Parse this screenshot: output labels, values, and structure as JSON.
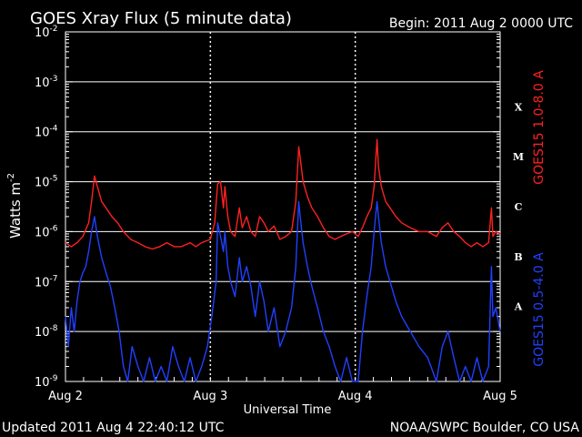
{
  "chart_data": {
    "type": "line",
    "title": "GOES Xray Flux (5 minute data)",
    "begin_label": "Begin:  2011 Aug 2 0000 UTC",
    "xlabel": "Universal Time",
    "ylabel_main": "Watts m",
    "ylabel_exp": "-2",
    "y_scale": "log",
    "ylim": [
      1e-09,
      0.01
    ],
    "xlim_days": [
      0,
      3
    ],
    "x_ticks": [
      {
        "day": 0,
        "label": "Aug 2"
      },
      {
        "day": 1,
        "label": "Aug 3"
      },
      {
        "day": 2,
        "label": "Aug 4"
      },
      {
        "day": 3,
        "label": "Aug 5"
      }
    ],
    "y_ticks": [
      {
        "exp": -2,
        "label_base": "10",
        "label_exp": "-2"
      },
      {
        "exp": -3,
        "label_base": "10",
        "label_exp": "-3"
      },
      {
        "exp": -4,
        "label_base": "10",
        "label_exp": "-4"
      },
      {
        "exp": -5,
        "label_base": "10",
        "label_exp": "-5"
      },
      {
        "exp": -6,
        "label_base": "10",
        "label_exp": "-6"
      },
      {
        "exp": -7,
        "label_base": "10",
        "label_exp": "-7"
      },
      {
        "exp": -8,
        "label_base": "10",
        "label_exp": "-8"
      },
      {
        "exp": -9,
        "label_base": "10",
        "label_exp": "-9"
      }
    ],
    "flare_classes": [
      {
        "label": "X",
        "exp": -3.5
      },
      {
        "label": "M",
        "exp": -4.5
      },
      {
        "label": "C",
        "exp": -5.5
      },
      {
        "label": "B",
        "exp": -6.5
      },
      {
        "label": "A",
        "exp": -7.5
      }
    ],
    "grid": true,
    "series": [
      {
        "name": "GOES15 1.0-8.0 A",
        "color": "#ff2020",
        "points": [
          [
            0.0,
            6e-07
          ],
          [
            0.04,
            5e-07
          ],
          [
            0.08,
            6e-07
          ],
          [
            0.12,
            8e-07
          ],
          [
            0.16,
            1.5e-06
          ],
          [
            0.18,
            4e-06
          ],
          [
            0.2,
            1.3e-05
          ],
          [
            0.22,
            8e-06
          ],
          [
            0.25,
            4e-06
          ],
          [
            0.28,
            3e-06
          ],
          [
            0.32,
            2e-06
          ],
          [
            0.36,
            1.5e-06
          ],
          [
            0.4,
            1e-06
          ],
          [
            0.45,
            7e-07
          ],
          [
            0.5,
            6e-07
          ],
          [
            0.55,
            5e-07
          ],
          [
            0.6,
            4.5e-07
          ],
          [
            0.65,
            5e-07
          ],
          [
            0.7,
            6e-07
          ],
          [
            0.75,
            5e-07
          ],
          [
            0.8,
            5e-07
          ],
          [
            0.86,
            6e-07
          ],
          [
            0.9,
            5e-07
          ],
          [
            0.94,
            6e-07
          ],
          [
            1.0,
            7e-07
          ],
          [
            1.03,
            1.5e-06
          ],
          [
            1.05,
            9e-06
          ],
          [
            1.07,
            1e-05
          ],
          [
            1.09,
            3e-06
          ],
          [
            1.1,
            8e-06
          ],
          [
            1.12,
            2e-06
          ],
          [
            1.14,
            1e-06
          ],
          [
            1.17,
            8e-07
          ],
          [
            1.2,
            3e-06
          ],
          [
            1.22,
            1.2e-06
          ],
          [
            1.25,
            2e-06
          ],
          [
            1.28,
            1e-06
          ],
          [
            1.31,
            8e-07
          ],
          [
            1.34,
            2e-06
          ],
          [
            1.37,
            1.5e-06
          ],
          [
            1.4,
            1e-06
          ],
          [
            1.44,
            1.3e-06
          ],
          [
            1.48,
            7e-07
          ],
          [
            1.52,
            8e-07
          ],
          [
            1.56,
            1e-06
          ],
          [
            1.59,
            4e-06
          ],
          [
            1.61,
            5e-05
          ],
          [
            1.62,
            3e-05
          ],
          [
            1.64,
            1e-05
          ],
          [
            1.67,
            5e-06
          ],
          [
            1.7,
            3e-06
          ],
          [
            1.74,
            2e-06
          ],
          [
            1.78,
            1.2e-06
          ],
          [
            1.82,
            8e-07
          ],
          [
            1.86,
            7e-07
          ],
          [
            1.9,
            8e-07
          ],
          [
            1.94,
            9e-07
          ],
          [
            1.98,
            1e-06
          ],
          [
            2.02,
            8e-07
          ],
          [
            2.05,
            1.2e-06
          ],
          [
            2.08,
            2e-06
          ],
          [
            2.11,
            3e-06
          ],
          [
            2.13,
            8e-06
          ],
          [
            2.15,
            7e-05
          ],
          [
            2.16,
            2e-05
          ],
          [
            2.18,
            8e-06
          ],
          [
            2.21,
            4e-06
          ],
          [
            2.24,
            3e-06
          ],
          [
            2.28,
            2e-06
          ],
          [
            2.32,
            1.5e-06
          ],
          [
            2.38,
            1.2e-06
          ],
          [
            2.44,
            1e-06
          ],
          [
            2.5,
            1e-06
          ],
          [
            2.56,
            8e-07
          ],
          [
            2.6,
            1.2e-06
          ],
          [
            2.64,
            1.5e-06
          ],
          [
            2.68,
            1e-06
          ],
          [
            2.72,
            8e-07
          ],
          [
            2.76,
            6e-07
          ],
          [
            2.8,
            5e-07
          ],
          [
            2.84,
            6e-07
          ],
          [
            2.88,
            5e-07
          ],
          [
            2.92,
            6e-07
          ],
          [
            2.94,
            3e-06
          ],
          [
            2.95,
            8e-07
          ],
          [
            2.97,
            1e-06
          ],
          [
            3.0,
            9e-07
          ]
        ]
      },
      {
        "name": "GOES15 0.5-4.0 A",
        "color": "#2040ff",
        "points": [
          [
            0.0,
            2e-08
          ],
          [
            0.02,
            5e-09
          ],
          [
            0.04,
            3e-08
          ],
          [
            0.06,
            1e-08
          ],
          [
            0.08,
            4e-08
          ],
          [
            0.1,
            1e-07
          ],
          [
            0.12,
            1.5e-07
          ],
          [
            0.14,
            2e-07
          ],
          [
            0.16,
            4e-07
          ],
          [
            0.18,
            1e-06
          ],
          [
            0.2,
            2e-06
          ],
          [
            0.22,
            8e-07
          ],
          [
            0.25,
            3e-07
          ],
          [
            0.28,
            1.5e-07
          ],
          [
            0.31,
            8e-08
          ],
          [
            0.34,
            3e-08
          ],
          [
            0.37,
            1e-08
          ],
          [
            0.4,
            2e-09
          ],
          [
            0.43,
            1e-09
          ],
          [
            0.46,
            5e-09
          ],
          [
            0.5,
            2e-09
          ],
          [
            0.54,
            1e-09
          ],
          [
            0.58,
            3e-09
          ],
          [
            0.62,
            1e-09
          ],
          [
            0.66,
            2e-09
          ],
          [
            0.7,
            1e-09
          ],
          [
            0.74,
            5e-09
          ],
          [
            0.78,
            2e-09
          ],
          [
            0.82,
            1e-09
          ],
          [
            0.86,
            3e-09
          ],
          [
            0.9,
            1e-09
          ],
          [
            0.94,
            2e-09
          ],
          [
            0.98,
            5e-09
          ],
          [
            1.01,
            2e-08
          ],
          [
            1.04,
            1e-07
          ],
          [
            1.05,
            1.5e-06
          ],
          [
            1.07,
            8e-07
          ],
          [
            1.09,
            4e-07
          ],
          [
            1.1,
            1e-06
          ],
          [
            1.12,
            2e-07
          ],
          [
            1.14,
            1e-07
          ],
          [
            1.17,
            5e-08
          ],
          [
            1.2,
            3e-07
          ],
          [
            1.22,
            1e-07
          ],
          [
            1.25,
            2e-07
          ],
          [
            1.28,
            8e-08
          ],
          [
            1.31,
            2e-08
          ],
          [
            1.34,
            1e-07
          ],
          [
            1.37,
            4e-08
          ],
          [
            1.4,
            1e-08
          ],
          [
            1.44,
            3e-08
          ],
          [
            1.48,
            5e-09
          ],
          [
            1.52,
            1e-08
          ],
          [
            1.56,
            3e-08
          ],
          [
            1.59,
            2e-07
          ],
          [
            1.61,
            4e-06
          ],
          [
            1.62,
            2e-06
          ],
          [
            1.64,
            6e-07
          ],
          [
            1.67,
            2e-07
          ],
          [
            1.7,
            8e-08
          ],
          [
            1.74,
            3e-08
          ],
          [
            1.78,
            1e-08
          ],
          [
            1.82,
            5e-09
          ],
          [
            1.86,
            2e-09
          ],
          [
            1.9,
            1e-09
          ],
          [
            1.94,
            3e-09
          ],
          [
            1.98,
            1e-09
          ],
          [
            2.02,
            1e-09
          ],
          [
            2.05,
            1e-08
          ],
          [
            2.08,
            5e-08
          ],
          [
            2.11,
            2e-07
          ],
          [
            2.13,
            1e-06
          ],
          [
            2.15,
            4e-06
          ],
          [
            2.16,
            2e-06
          ],
          [
            2.18,
            6e-07
          ],
          [
            2.21,
            2e-07
          ],
          [
            2.24,
            1e-07
          ],
          [
            2.28,
            4e-08
          ],
          [
            2.32,
            2e-08
          ],
          [
            2.38,
            1e-08
          ],
          [
            2.44,
            5e-09
          ],
          [
            2.5,
            3e-09
          ],
          [
            2.56,
            1e-09
          ],
          [
            2.6,
            5e-09
          ],
          [
            2.64,
            1e-08
          ],
          [
            2.68,
            3e-09
          ],
          [
            2.72,
            1e-09
          ],
          [
            2.76,
            2e-09
          ],
          [
            2.8,
            1e-09
          ],
          [
            2.84,
            3e-09
          ],
          [
            2.88,
            1e-09
          ],
          [
            2.92,
            2e-09
          ],
          [
            2.94,
            2e-07
          ],
          [
            2.95,
            2e-08
          ],
          [
            2.97,
            3e-08
          ],
          [
            3.0,
            1e-08
          ]
        ]
      }
    ]
  },
  "footer": {
    "updated": "Updated 2011 Aug  4 22:40:12 UTC",
    "source": "NOAA/SWPC Boulder, CO USA"
  }
}
